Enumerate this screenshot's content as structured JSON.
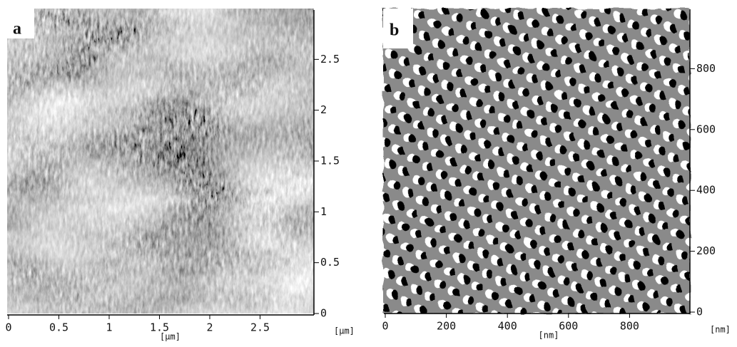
{
  "panels": [
    {
      "label": "a",
      "x_axis": {
        "unit_center": "[μm]",
        "unit_right": "[μm]",
        "lim": [
          0,
          3
        ],
        "ticks": [
          0,
          0.5,
          1,
          1.5,
          2,
          2.5
        ]
      },
      "y_axis": {
        "lim": [
          0,
          3
        ],
        "ticks": [
          0,
          0.5,
          1,
          1.5,
          2,
          2.5
        ]
      }
    },
    {
      "label": "b",
      "x_axis": {
        "unit_center": "[nm]",
        "unit_right": "[nm]",
        "lim": [
          0,
          1000
        ],
        "ticks": [
          0,
          200,
          400,
          600,
          800
        ]
      },
      "y_axis": {
        "lim": [
          0,
          1000
        ],
        "ticks": [
          0,
          200,
          400,
          600,
          800
        ]
      }
    }
  ]
}
